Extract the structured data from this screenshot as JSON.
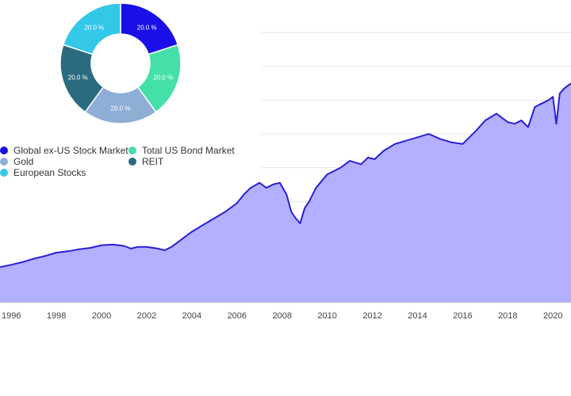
{
  "chart_data": [
    {
      "type": "area",
      "x_ticks": [
        "1996",
        "1998",
        "2000",
        "2002",
        "2004",
        "2006",
        "2008",
        "2010",
        "2012",
        "2014",
        "2016",
        "2018",
        "2020"
      ],
      "xlim": [
        1995.5,
        2020.8
      ],
      "ylim": [
        0,
        8.5
      ],
      "grid": true,
      "fill_color": "#b3b0ff",
      "line_color": "#2a1fd6",
      "series": [
        {
          "x": [
            1995.5,
            1996,
            1996.5,
            1997,
            1997.5,
            1998,
            1998.5,
            1999,
            1999.5,
            2000,
            2000.5,
            2001,
            2001.3,
            2001.6,
            2002,
            2002.5,
            2002.8,
            2003.1,
            2003.5,
            2004,
            2004.5,
            2005,
            2005.5,
            2006,
            2006.3,
            2006.6,
            2007,
            2007.3,
            2007.6,
            2007.9,
            2008.2,
            2008.4,
            2008.6,
            2008.8,
            2009.0,
            2009.2,
            2009.5,
            2010,
            2010.3,
            2010.6,
            2011,
            2011.5,
            2011.8,
            2012.1,
            2012.5,
            2013,
            2013.5,
            2014,
            2014.5,
            2015,
            2015.5,
            2016,
            2016.3,
            2016.6,
            2017,
            2017.5,
            2018,
            2018.3,
            2018.6,
            2018.9,
            2019.2,
            2019.5,
            2019.8,
            2020.0,
            2020.15,
            2020.3,
            2020.5,
            2020.8
          ],
          "y": [
            1.05,
            1.12,
            1.2,
            1.3,
            1.38,
            1.48,
            1.52,
            1.58,
            1.62,
            1.7,
            1.72,
            1.68,
            1.6,
            1.65,
            1.65,
            1.6,
            1.55,
            1.65,
            1.85,
            2.1,
            2.3,
            2.5,
            2.7,
            2.95,
            3.2,
            3.4,
            3.55,
            3.4,
            3.5,
            3.55,
            3.2,
            2.7,
            2.5,
            2.35,
            2.8,
            3.0,
            3.4,
            3.8,
            3.9,
            4.0,
            4.2,
            4.1,
            4.3,
            4.25,
            4.5,
            4.7,
            4.8,
            4.9,
            5.0,
            4.85,
            4.75,
            4.7,
            4.9,
            5.1,
            5.4,
            5.6,
            5.35,
            5.3,
            5.4,
            5.2,
            5.8,
            5.9,
            6.0,
            6.1,
            5.3,
            6.2,
            6.35,
            6.5
          ]
        }
      ]
    },
    {
      "type": "pie",
      "donut": true,
      "slices": [
        {
          "name": "Global ex-US Stock Market",
          "value": 20.0,
          "label": "20.0 %",
          "color": "#1a0fe6"
        },
        {
          "name": "Total US Bond Market",
          "value": 20.0,
          "label": "20.0 %",
          "color": "#45e0a8"
        },
        {
          "name": "Gold",
          "value": 20.0,
          "label": "20.0 %",
          "color": "#8faed6"
        },
        {
          "name": "REIT",
          "value": 20.0,
          "label": "20.0 %",
          "color": "#2a6b80"
        },
        {
          "name": "European Stocks",
          "value": 20.0,
          "label": "20.0 %",
          "color": "#33c8e8"
        }
      ],
      "legend": "below-left"
    }
  ],
  "legend_items": [
    {
      "label": "Global ex-US Stock Market",
      "color": "#1a0fe6"
    },
    {
      "label": "Total US Bond Market",
      "color": "#45e0a8"
    },
    {
      "label": "Gold",
      "color": "#8faed6"
    },
    {
      "label": "REIT",
      "color": "#2a6b80"
    },
    {
      "label": "European Stocks",
      "color": "#33c8e8"
    }
  ]
}
